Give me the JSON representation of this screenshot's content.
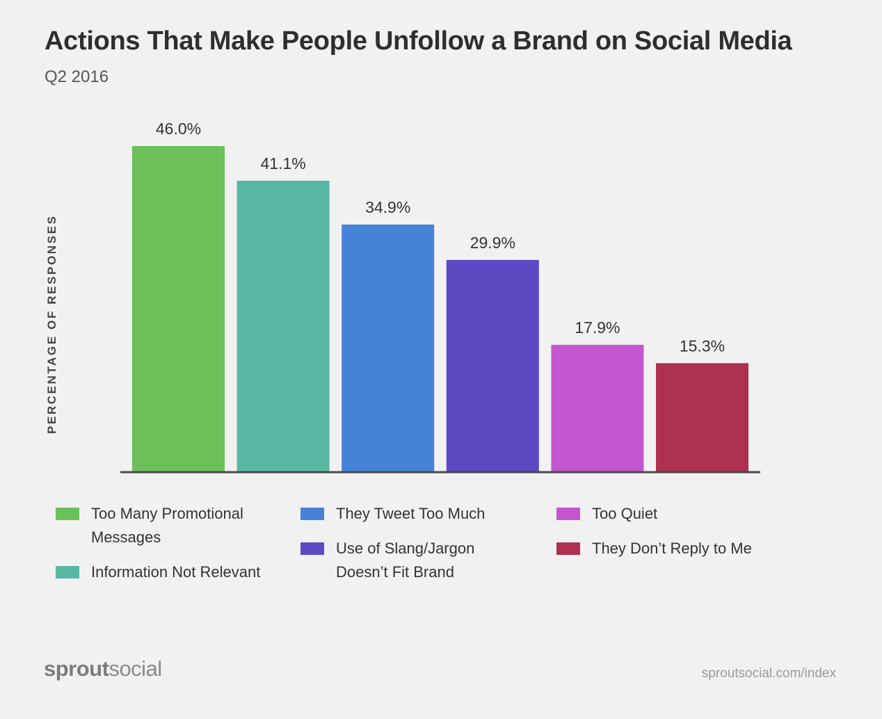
{
  "header": {
    "title": "Actions That Make People Unfollow a Brand on Social Media",
    "subtitle": "Q2 2016"
  },
  "chart_data": {
    "type": "bar",
    "title": "Actions That Make People Unfollow a Brand on Social Media",
    "subtitle": "Q2 2016",
    "ylabel": "PERCENTAGE OF RESPONSES",
    "xlabel": "",
    "ylim": [
      0,
      46
    ],
    "grid": false,
    "legend_position": "bottom",
    "categories": [
      "Too Many Promotional Messages",
      "Information Not Relevant",
      "They Tweet Too Much",
      "Use of Slang/Jargon Doesn’t Fit Brand",
      "Too Quiet",
      "They Don’t Reply to Me"
    ],
    "values": [
      46.0,
      41.1,
      34.9,
      29.9,
      17.9,
      15.3
    ],
    "value_labels": [
      "46.0%",
      "41.1%",
      "34.9%",
      "29.9%",
      "17.9%",
      "15.3%"
    ],
    "colors": [
      "#6cc05a",
      "#58b8a5",
      "#4683d8",
      "#5b49c3",
      "#c455d0",
      "#ad3050"
    ]
  },
  "legend": {
    "items": [
      {
        "label": "Too Many Promotional Messages",
        "color": "#6cc05a"
      },
      {
        "label": "Information Not Relevant",
        "color": "#58b8a5"
      },
      {
        "label": "They Tweet Too Much",
        "color": "#4683d8"
      },
      {
        "label": "Use of Slang/Jargon Doesn’t Fit Brand",
        "color": "#5b49c3"
      },
      {
        "label": "Too Quiet",
        "color": "#c455d0"
      },
      {
        "label": "They Don’t Reply to Me",
        "color": "#ad3050"
      }
    ]
  },
  "footer": {
    "logo_strong": "sprout",
    "logo_light": "social",
    "url": "sproutsocial.com/index"
  }
}
